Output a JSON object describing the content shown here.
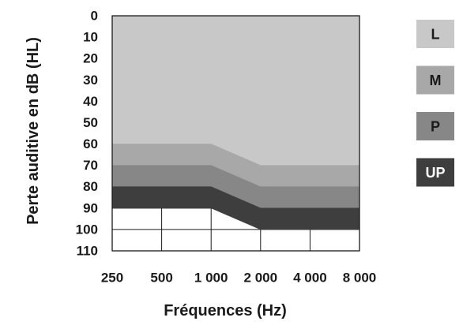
{
  "chart_data": {
    "type": "area",
    "xlabel": "Fréquences (Hz)",
    "ylabel": "Perte auditive en dB (HL)",
    "x_scale": "log",
    "x": [
      250,
      500,
      1000,
      2000,
      4000,
      8000
    ],
    "x_tick_labels": [
      "250",
      "500",
      "1 000",
      "2 000",
      "4 000",
      "8 000"
    ],
    "y_ticks": [
      0,
      10,
      20,
      30,
      40,
      50,
      60,
      70,
      80,
      90,
      100,
      110
    ],
    "ylim": [
      0,
      110
    ],
    "y_inverted": true,
    "grid": true,
    "legend_position": "right",
    "series": [
      {
        "name": "L",
        "from": [
          0,
          0,
          0,
          0,
          0,
          0
        ],
        "to": [
          60,
          60,
          60,
          70,
          70,
          70
        ],
        "color": "#c8c8c8",
        "label_color": "#1a1a1a"
      },
      {
        "name": "M",
        "from": [
          60,
          60,
          60,
          70,
          70,
          70
        ],
        "to": [
          70,
          70,
          70,
          80,
          80,
          80
        ],
        "color": "#a8a8a8",
        "label_color": "#1a1a1a"
      },
      {
        "name": "P",
        "from": [
          70,
          70,
          70,
          80,
          80,
          80
        ],
        "to": [
          80,
          80,
          80,
          90,
          90,
          90
        ],
        "color": "#878787",
        "label_color": "#1a1a1a"
      },
      {
        "name": "UP",
        "from": [
          80,
          80,
          80,
          90,
          90,
          90
        ],
        "to": [
          90,
          90,
          90,
          100,
          100,
          100
        ],
        "color": "#3e3e3e",
        "label_color": "#ffffff"
      }
    ]
  }
}
